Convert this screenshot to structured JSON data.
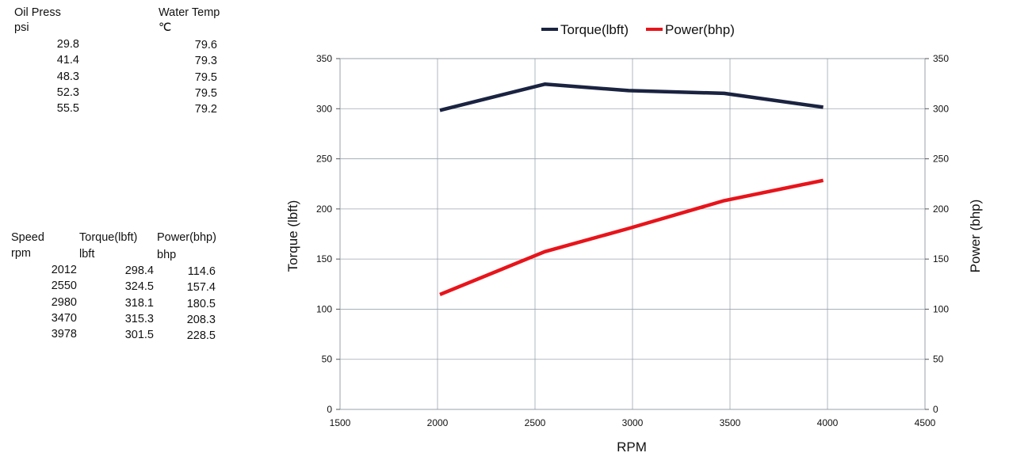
{
  "oil_table": {
    "oil_header": "Oil Press",
    "oil_unit": "psi",
    "water_header": "Water Temp",
    "water_unit": "℃",
    "oil_values": [
      "29.8",
      "41.4",
      "48.3",
      "52.3",
      "55.5"
    ],
    "water_values": [
      "79.6",
      "79.3",
      "79.5",
      "79.5",
      "79.2"
    ]
  },
  "speed_table": {
    "headers": [
      "Speed",
      "Torque(lbft)",
      "Power(bhp)"
    ],
    "units": [
      "rpm",
      "lbft",
      "bhp"
    ],
    "rows": [
      [
        "2012",
        "298.4",
        "114.6"
      ],
      [
        "2550",
        "324.5",
        "157.4"
      ],
      [
        "2980",
        "318.1",
        "180.5"
      ],
      [
        "3470",
        "315.3",
        "208.3"
      ],
      [
        "3978",
        "301.5",
        "228.5"
      ]
    ]
  },
  "chart_data": {
    "type": "line",
    "xlabel": "RPM",
    "ylabel": "Torque (lbft)",
    "y2label": "Power (bhp)",
    "xlim": [
      1500,
      4500
    ],
    "ylim": [
      0,
      350
    ],
    "y2lim": [
      0,
      350
    ],
    "x_ticks": [
      "1500",
      "2000",
      "2500",
      "3000",
      "3500",
      "4000",
      "4500"
    ],
    "y_ticks": [
      "0",
      "50",
      "100",
      "150",
      "200",
      "250",
      "300",
      "350"
    ],
    "y2_ticks": [
      "0",
      "50",
      "100",
      "150",
      "200",
      "250",
      "300",
      "350"
    ],
    "grid": true,
    "legend_position": "top",
    "series": [
      {
        "name": "Torque(lbft)",
        "axis": "left",
        "color": "#1a2340",
        "x": [
          2012,
          2550,
          2980,
          3470,
          3978
        ],
        "y": [
          298.4,
          324.5,
          318.1,
          315.3,
          301.5
        ]
      },
      {
        "name": "Power(bhp)",
        "axis": "right",
        "color": "#e8141b",
        "x": [
          2012,
          2550,
          2980,
          3470,
          3978
        ],
        "y": [
          114.6,
          157.4,
          180.5,
          208.3,
          228.5
        ]
      }
    ]
  }
}
